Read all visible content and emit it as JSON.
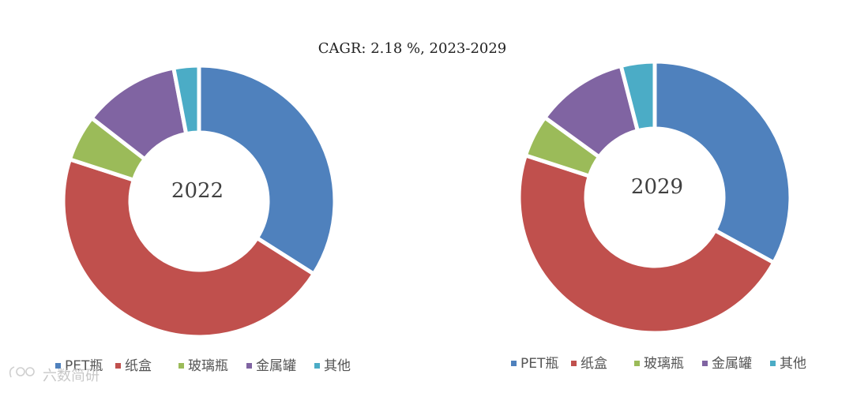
{
  "chart_data": [
    {
      "type": "pie",
      "subtype": "donut",
      "title": "CAGR: 2.18 %, 2023-2029",
      "center_label": "2022",
      "categories": [
        "PET瓶",
        "纸盒",
        "玻璃瓶",
        "金属罐",
        "其他"
      ],
      "values": [
        34,
        46,
        5.5,
        11.5,
        3
      ],
      "unit": "%",
      "colors": [
        "#4f81bd",
        "#c0504d",
        "#9bbb59",
        "#8064a2",
        "#4bacc6"
      ],
      "legend": "bottom"
    },
    {
      "type": "pie",
      "subtype": "donut",
      "center_label": "2029",
      "categories": [
        "PET瓶",
        "纸盒",
        "玻璃瓶",
        "金属罐",
        "其他"
      ],
      "values": [
        33,
        47,
        5,
        11,
        4
      ],
      "unit": "%",
      "colors": [
        "#4f81bd",
        "#c0504d",
        "#9bbb59",
        "#8064a2",
        "#4bacc6"
      ],
      "legend": "bottom"
    }
  ],
  "watermark": "六数简研"
}
